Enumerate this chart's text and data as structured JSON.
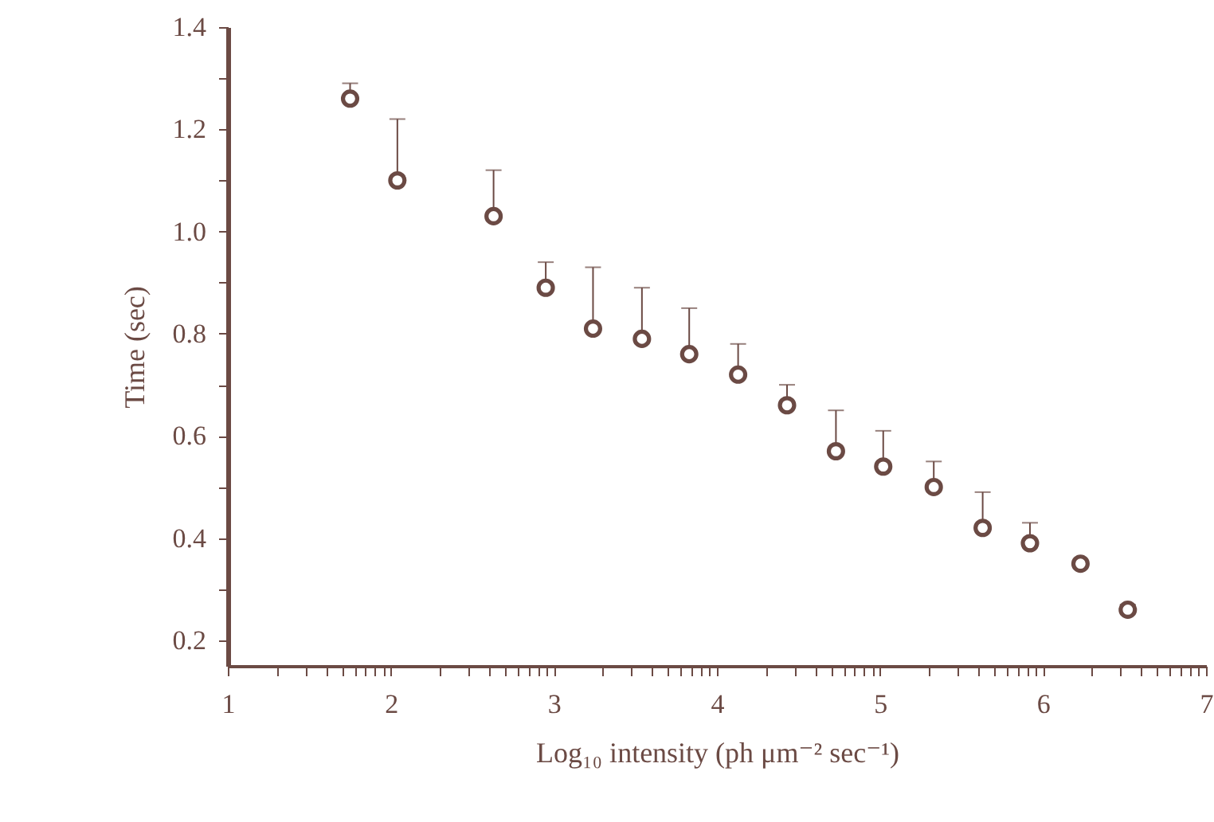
{
  "chart_data": {
    "type": "scatter",
    "xlabel": "Log₁₀ intensity (ph μm⁻² sec⁻¹)",
    "ylabel": "Time (sec)",
    "x": [
      1.75,
      2.04,
      2.63,
      2.95,
      3.24,
      3.54,
      3.83,
      4.13,
      4.43,
      4.73,
      5.02,
      5.33,
      5.63,
      5.92,
      6.23,
      6.52
    ],
    "series": [
      {
        "color": "#6b4a44",
        "values": [
          1.26,
          1.1,
          1.03,
          0.89,
          0.81,
          0.79,
          0.76,
          0.72,
          0.66,
          0.57,
          0.54,
          0.5,
          0.42,
          0.39,
          0.35,
          0.26
        ],
        "errors": [
          [
            1.26,
            1.29
          ],
          [
            1.1,
            1.22
          ],
          [
            1.03,
            1.12
          ],
          [
            0.89,
            0.94
          ],
          [
            0.81,
            0.93
          ],
          [
            0.79,
            0.89
          ],
          [
            0.76,
            0.85
          ],
          [
            0.72,
            0.78
          ],
          [
            0.66,
            0.7
          ],
          [
            0.57,
            0.65
          ],
          [
            0.54,
            0.61
          ],
          [
            0.5,
            0.55
          ],
          [
            0.42,
            0.49
          ],
          [
            0.39,
            0.43
          ],
          null,
          [
            0.26,
            0.27
          ]
        ]
      }
    ],
    "marker": "circle",
    "xlim": [
      1,
      7
    ],
    "ylim": [
      0.15,
      1.4
    ],
    "xticks": [
      1,
      {
        "value": 1.301,
        "label": null
      },
      {
        "value": 1.477,
        "label": null
      },
      {
        "value": 1.602,
        "label": null
      },
      {
        "value": 1.699,
        "label": null
      },
      {
        "value": 1.778,
        "label": null
      },
      {
        "value": 1.845,
        "label": null
      },
      {
        "value": 1.903,
        "label": null
      },
      {
        "value": 1.954,
        "label": null
      },
      2,
      {
        "value": 2.301,
        "label": null
      },
      {
        "value": 2.477,
        "label": null
      },
      {
        "value": 2.602,
        "label": null
      },
      {
        "value": 2.699,
        "label": null
      },
      {
        "value": 2.778,
        "label": null
      },
      {
        "value": 2.845,
        "label": null
      },
      {
        "value": 2.903,
        "label": null
      },
      {
        "value": 2.954,
        "label": null
      },
      3,
      {
        "value": 3.301,
        "label": null
      },
      {
        "value": 3.477,
        "label": null
      },
      {
        "value": 3.602,
        "label": null
      },
      {
        "value": 3.699,
        "label": null
      },
      {
        "value": 3.778,
        "label": null
      },
      {
        "value": 3.845,
        "label": null
      },
      {
        "value": 3.903,
        "label": null
      },
      {
        "value": 3.954,
        "label": null
      },
      4,
      {
        "value": 4.301,
        "label": null
      },
      {
        "value": 4.477,
        "label": null
      },
      {
        "value": 4.602,
        "label": null
      },
      {
        "value": 4.699,
        "label": null
      },
      {
        "value": 4.778,
        "label": null
      },
      {
        "value": 4.845,
        "label": null
      },
      {
        "value": 4.903,
        "label": null
      },
      {
        "value": 4.954,
        "label": null
      },
      5,
      {
        "value": 5.301,
        "label": null
      },
      {
        "value": 5.477,
        "label": null
      },
      {
        "value": 5.602,
        "label": null
      },
      {
        "value": 5.699,
        "label": null
      },
      {
        "value": 5.778,
        "label": null
      },
      {
        "value": 5.845,
        "label": null
      },
      {
        "value": 5.903,
        "label": null
      },
      {
        "value": 5.954,
        "label": null
      },
      6,
      {
        "value": 6.301,
        "label": null
      },
      {
        "value": 6.477,
        "label": null
      },
      {
        "value": 6.602,
        "label": null
      },
      {
        "value": 6.699,
        "label": null
      },
      {
        "value": 6.778,
        "label": null
      },
      {
        "value": 6.845,
        "label": null
      },
      {
        "value": 6.903,
        "label": null
      },
      {
        "value": 6.954,
        "label": null
      },
      7
    ],
    "yticks": [
      0.2,
      {
        "value": 0.3,
        "label": null
      },
      0.4,
      {
        "value": 0.5,
        "label": null
      },
      0.6,
      {
        "value": 0.7,
        "label": null
      },
      0.8,
      {
        "value": 0.9,
        "label": null
      },
      {
        "value": 1.0,
        "label": "1.0"
      },
      {
        "value": 1.1,
        "label": null
      },
      1.2,
      {
        "value": 1.3,
        "label": null
      },
      1.4
    ]
  }
}
